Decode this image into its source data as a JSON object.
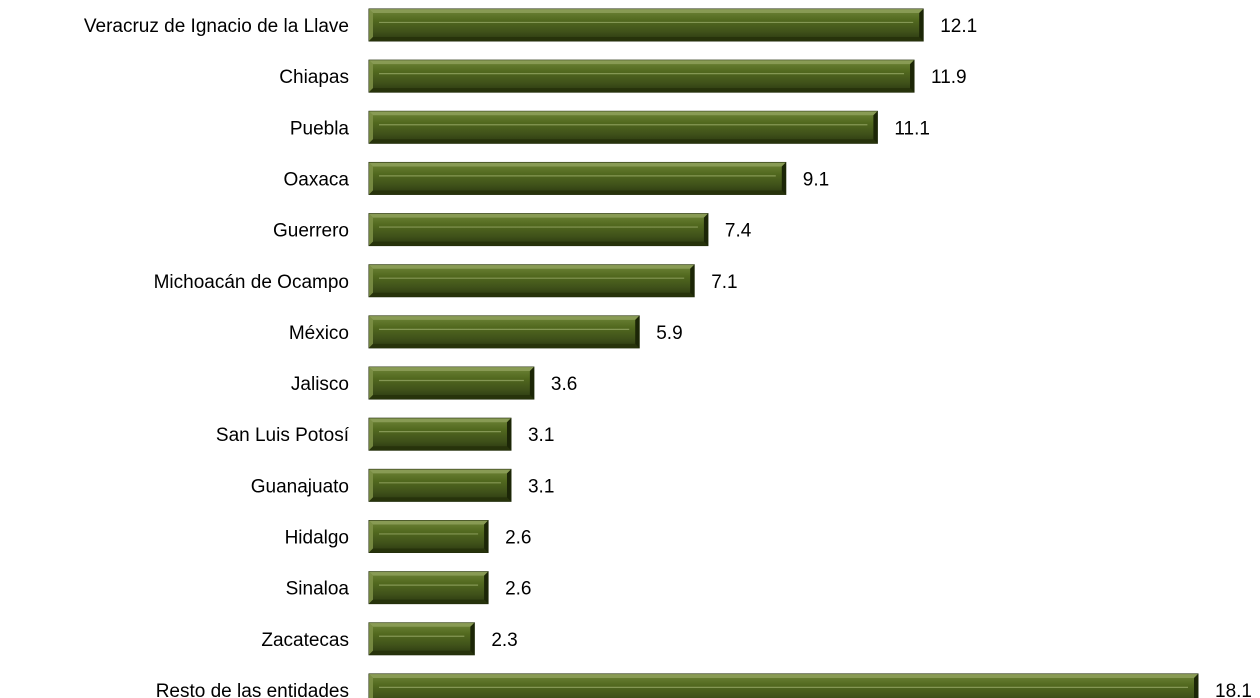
{
  "chart_data": {
    "type": "bar",
    "orientation": "horizontal",
    "categories": [
      "Veracruz de Ignacio de la Llave",
      "Chiapas",
      "Puebla",
      "Oaxaca",
      "Guerrero",
      "Michoacán de Ocampo",
      "México",
      "Jalisco",
      "San Luis Potosí",
      "Guanajuato",
      "Hidalgo",
      "Sinaloa",
      "Zacatecas",
      "Resto de las entidades"
    ],
    "values": [
      12.1,
      11.9,
      11.1,
      9.1,
      7.4,
      7.1,
      5.9,
      3.6,
      3.1,
      3.1,
      2.6,
      2.6,
      2.3,
      18.1
    ],
    "value_labels": [
      "12.1",
      "11.9",
      "11.1",
      "9.1",
      "7.4",
      "7.1",
      "5.9",
      "3.6",
      "3.1",
      "3.1",
      "2.6",
      "2.6",
      "2.3",
      "18.1"
    ],
    "title": "",
    "xlabel": "",
    "ylabel": "",
    "xlim": [
      0,
      18.1
    ],
    "grid": false,
    "legend": "none",
    "colors": {
      "bar_fill": "#4a5e1a",
      "bar_light": "#7a8f45",
      "bar_dark": "#27330b",
      "bar_outline": "#1f2a08"
    }
  }
}
